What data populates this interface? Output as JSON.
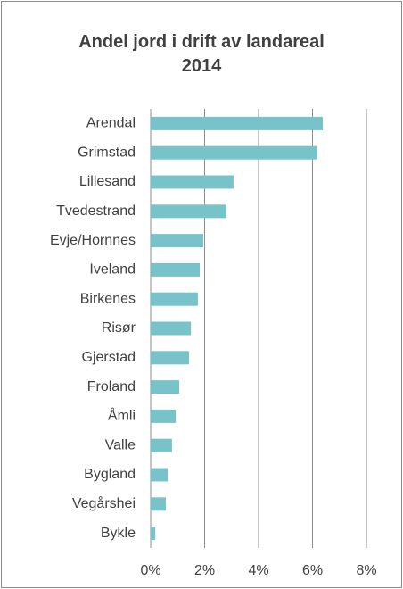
{
  "chart_data": {
    "type": "bar",
    "orientation": "horizontal",
    "title": "Andel jord i drift av landareal 2014",
    "categories": [
      "Arendal",
      "Grimstad",
      "Lillesand",
      "Tvedestrand",
      "Evje/Hornnes",
      "Iveland",
      "Birkenes",
      "Risør",
      "Gjerstad",
      "Froland",
      "Åmli",
      "Valle",
      "Bygland",
      "Vegårshei",
      "Bykle"
    ],
    "values": [
      6.38,
      6.18,
      3.07,
      2.81,
      1.95,
      1.82,
      1.75,
      1.49,
      1.42,
      1.06,
      0.93,
      0.79,
      0.63,
      0.56,
      0.17
    ],
    "color": "#78c3c9",
    "xlim": [
      0,
      8
    ],
    "xticks": [
      {
        "value": 0,
        "label": "0%"
      },
      {
        "value": 2,
        "label": "2%"
      },
      {
        "value": 4,
        "label": "4%"
      },
      {
        "value": 6,
        "label": "6%"
      },
      {
        "value": 8,
        "label": "8%"
      }
    ],
    "grid": true
  }
}
